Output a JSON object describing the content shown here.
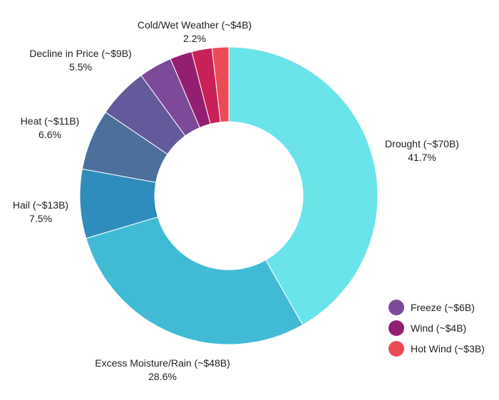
{
  "chart_data": {
    "type": "pie",
    "donut": true,
    "title": "",
    "slices": [
      {
        "label": "Drought (~$70B)",
        "percent_label": "41.7%",
        "value": 41.7,
        "color": "#6ae4ea"
      },
      {
        "label": "Excess Moisture/Rain (~$48B)",
        "percent_label": "28.6%",
        "value": 28.6,
        "color": "#41bbd5"
      },
      {
        "label": "Hail (~$13B)",
        "percent_label": "7.5%",
        "value": 7.5,
        "color": "#2f8dbd"
      },
      {
        "label": "Heat (~$11B)",
        "percent_label": "6.6%",
        "value": 6.6,
        "color": "#4d6f9c"
      },
      {
        "label": "Decline in Price (~$9B)",
        "percent_label": "5.5%",
        "value": 5.5,
        "color": "#625a9a"
      },
      {
        "label": "Freeze (~$6B)",
        "value": 3.6,
        "color": "#7c4a98"
      },
      {
        "label": "Wind (~$4B)",
        "value": 2.4,
        "color": "#931f72"
      },
      {
        "label": "Cold/Wet Weather (~$4B)",
        "percent_label": "2.2%",
        "value": 2.2,
        "color": "#c82158"
      },
      {
        "label": "Hot Wind (~$3B)",
        "value": 1.8,
        "color": "#eb4b57"
      }
    ],
    "legend": {
      "placement": "bottom-right",
      "entries": [
        {
          "label": "Freeze (~$6B)",
          "color": "#7c4a98"
        },
        {
          "label": "Wind (~$4B)",
          "color": "#931f72"
        },
        {
          "label": "Hot Wind (~$3B)",
          "color": "#eb4b57"
        }
      ]
    }
  }
}
